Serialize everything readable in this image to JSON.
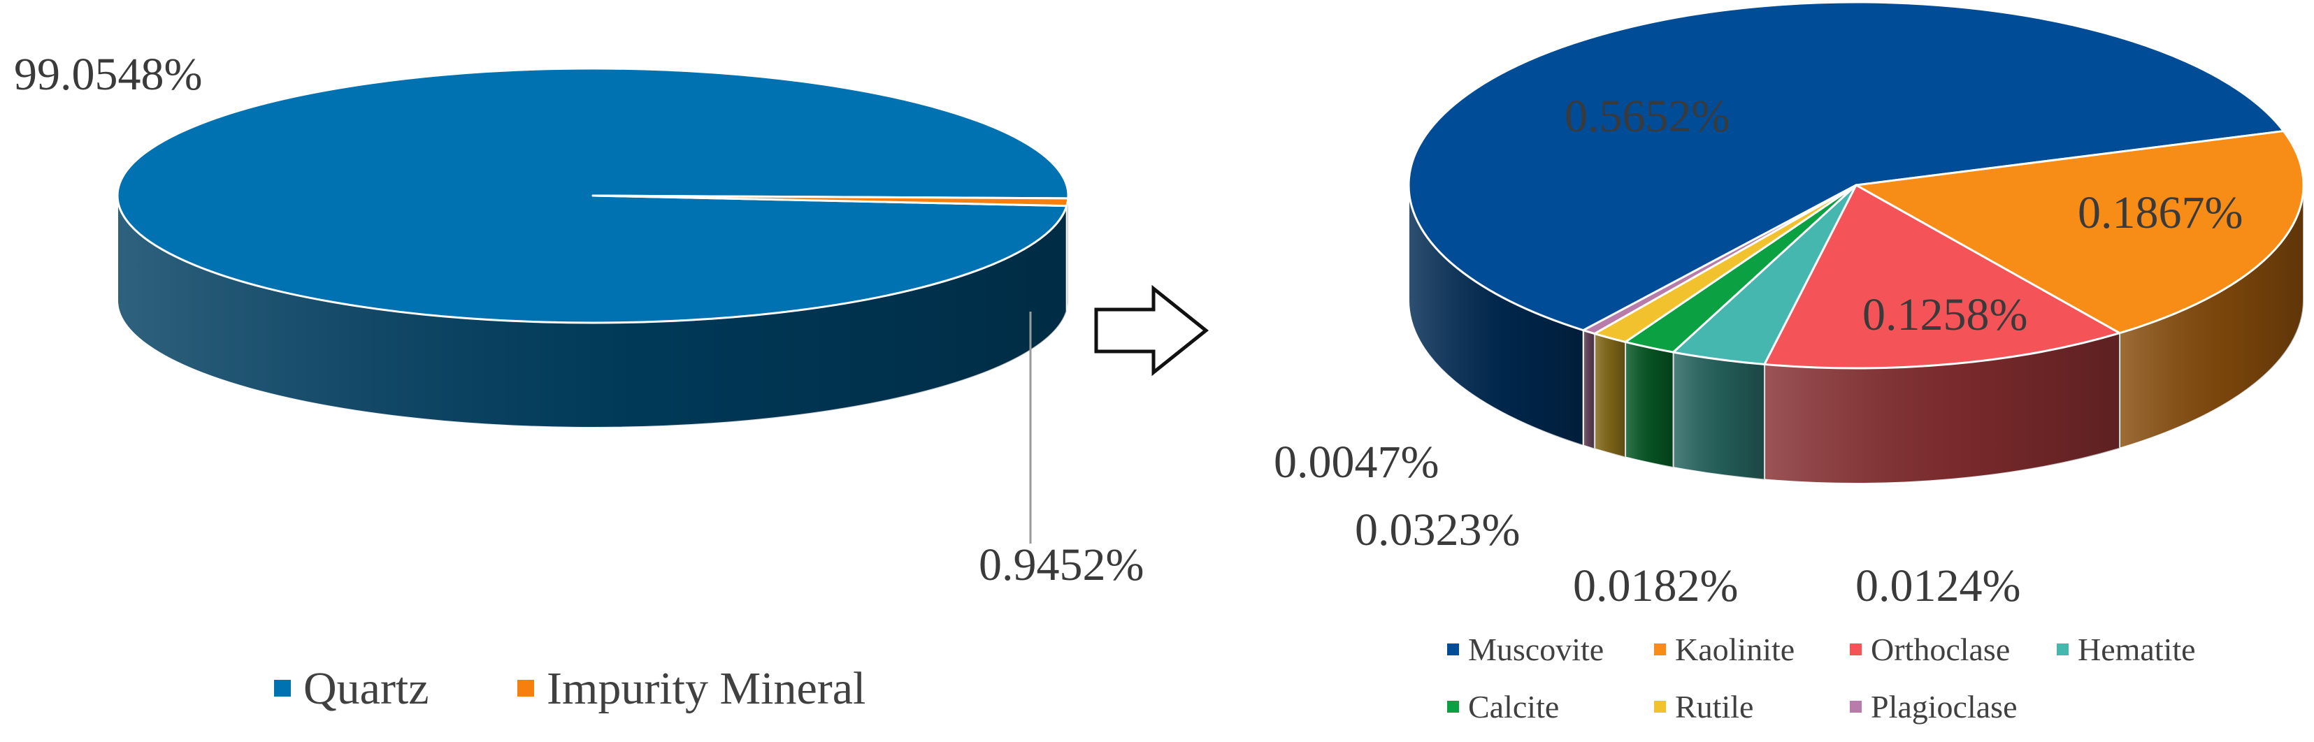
{
  "chart_data": [
    {
      "type": "pie",
      "style": "3d",
      "legend_position": "bottom",
      "slices": [
        {
          "name": "Quartz",
          "value": 99.0548,
          "label": "99.0548%",
          "color": "#0072B2"
        },
        {
          "name": "Impurity Mineral",
          "value": 0.9452,
          "label": "0.9452%",
          "color": "#F77F0E"
        }
      ]
    },
    {
      "type": "pie",
      "style": "3d",
      "legend_position": "bottom",
      "slices": [
        {
          "name": "Muscovite",
          "value": 0.5652,
          "label": "0.5652%",
          "color": "#004C97"
        },
        {
          "name": "Kaolinite",
          "value": 0.1867,
          "label": "0.1867%",
          "color": "#F78C16"
        },
        {
          "name": "Orthoclase",
          "value": 0.1258,
          "label": "0.1258%",
          "color": "#F45358"
        },
        {
          "name": "Hematite",
          "value": 0.0323,
          "label": "0.0323%",
          "color": "#45B7AE"
        },
        {
          "name": "Calcite",
          "value": 0.0182,
          "label": "0.0182%",
          "color": "#0BA143"
        },
        {
          "name": "Rutile",
          "value": 0.0124,
          "label": "0.0124%",
          "color": "#F2C12E"
        },
        {
          "name": "Plagioclase",
          "value": 0.0047,
          "label": "0.0047%",
          "color": "#B77CA9"
        }
      ]
    }
  ],
  "arrow": {
    "icon": "right-arrow-icon"
  }
}
